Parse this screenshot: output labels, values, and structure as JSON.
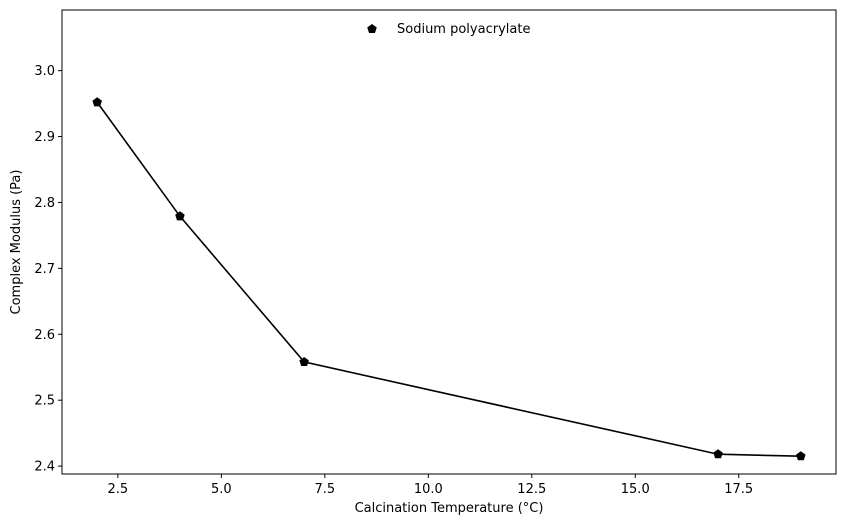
{
  "chart_data": {
    "type": "line",
    "title": "",
    "xlabel": "Calcination Temperature (°C)",
    "ylabel": "Complex Modulus (Pa)",
    "xlim": [
      1.15,
      19.85
    ],
    "ylim": [
      2.388,
      3.092
    ],
    "x_ticks": [
      "2.5",
      "5.0",
      "7.5",
      "10.0",
      "12.5",
      "15.0",
      "17.5"
    ],
    "y_ticks": [
      "2.4",
      "2.5",
      "2.6",
      "2.7",
      "2.8",
      "2.9",
      "3.0"
    ],
    "legend_position": "top-center",
    "grid": false,
    "series": [
      {
        "name": "Sodium polyacrylate",
        "marker": "pentagon",
        "color": "#000000",
        "x": [
          2,
          4,
          7,
          17,
          19
        ],
        "y": [
          2.952,
          2.779,
          2.558,
          2.418,
          2.415
        ]
      }
    ]
  }
}
